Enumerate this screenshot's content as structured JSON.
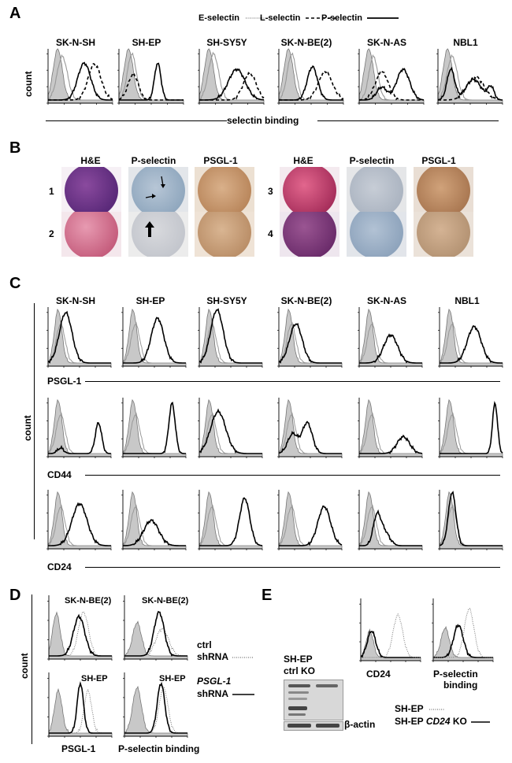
{
  "panel_labels": {
    "a": "A",
    "b": "B",
    "c": "C",
    "d": "D",
    "e": "E"
  },
  "panelA": {
    "legend": {
      "e": "E-selectin",
      "l": "L-selectin",
      "p": "P-selectin"
    },
    "cell_lines": [
      "SK-N-SH",
      "SH-EP",
      "SH-SY5Y",
      "SK-N-BE(2)",
      "SK-N-AS",
      "NBL1"
    ],
    "ylabel": "count",
    "xlabel": "selectin binding"
  },
  "panelB": {
    "headers": [
      "H&E",
      "P-selectin",
      "PSGL-1"
    ],
    "rows": [
      "1",
      "2",
      "3",
      "4"
    ]
  },
  "panelC": {
    "cell_lines": [
      "SK-N-SH",
      "SH-EP",
      "SH-SY5Y",
      "SK-N-BE(2)",
      "SK-N-AS",
      "NBL1"
    ],
    "ylabel": "count",
    "markers": [
      "PSGL-1",
      "CD44",
      "CD24"
    ]
  },
  "panelD": {
    "ylabel": "count",
    "top_line": "SK-N-BE(2)",
    "bottom_line": "SH-EP",
    "xlabels": [
      "PSGL-1",
      "P-selectin binding"
    ],
    "legend_ctrl": [
      "ctrl",
      "shRNA"
    ],
    "legend_psgl": [
      "PSGL-1",
      "shRNA"
    ]
  },
  "panelE": {
    "blot_title": [
      "SH-EP",
      "ctrl KO"
    ],
    "actin": "β-actin",
    "xlabels": [
      "CD24",
      "P-selectin",
      "binding"
    ],
    "legend": [
      "SH-EP",
      "SH-EP",
      "CD24",
      "KO"
    ]
  },
  "chart_data": [
    {
      "type": "area",
      "panel": "A",
      "series": [
        {
          "name": "E-selectin"
        },
        {
          "name": "L-selectin"
        },
        {
          "name": "P-selectin"
        }
      ],
      "categories": [
        "SK-N-SH",
        "SH-EP",
        "SH-SY5Y",
        "SK-N-BE(2)",
        "SK-N-AS",
        "NBL1"
      ],
      "xlabel": "selectin binding",
      "ylabel": "count",
      "xscale": "log",
      "xticks": [
        "10^0",
        "10^1",
        "10^2",
        "10^3",
        "10^4"
      ],
      "yticks": [
        "0",
        "200",
        "400",
        "600"
      ]
    },
    {
      "type": "area",
      "panel": "C",
      "rows": [
        "PSGL-1",
        "CD44",
        "CD24"
      ],
      "categories": [
        "SK-N-SH",
        "SH-EP",
        "SH-SY5Y",
        "SK-N-BE(2)",
        "SK-N-AS",
        "NBL1"
      ],
      "ylabel": "count",
      "xscale": "log"
    },
    {
      "type": "area",
      "panel": "D",
      "xlabels": [
        "PSGL-1",
        "P-selectin binding"
      ],
      "series": [
        {
          "name": "ctrl shRNA"
        },
        {
          "name": "PSGL-1 shRNA"
        }
      ]
    },
    {
      "type": "area",
      "panel": "E",
      "xlabels": [
        "CD24",
        "P-selectin binding"
      ],
      "series": [
        {
          "name": "SH-EP"
        },
        {
          "name": "SH-EP CD24 KO"
        }
      ]
    }
  ]
}
